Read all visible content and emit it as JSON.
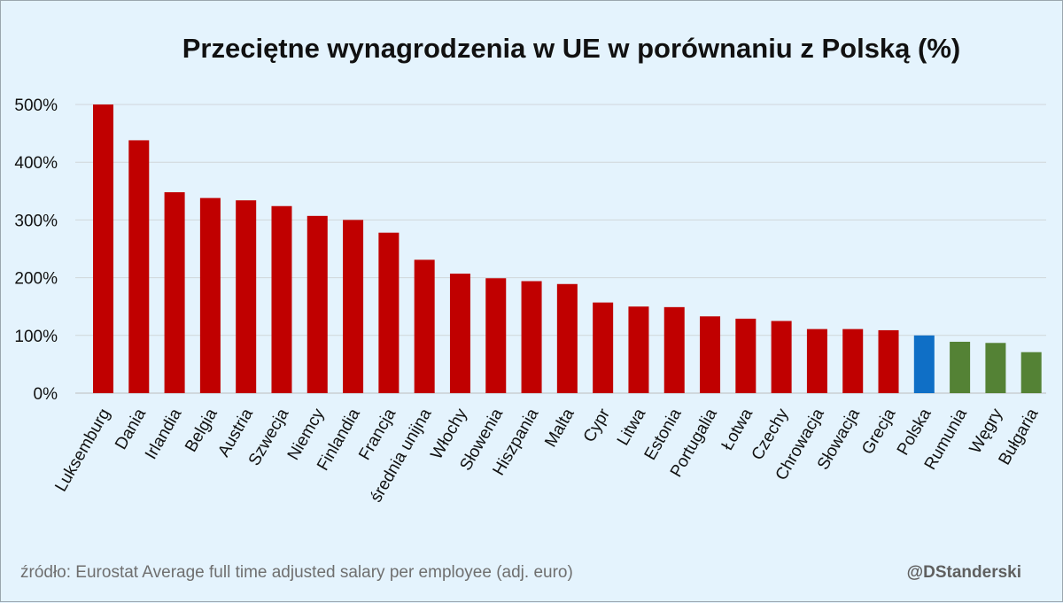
{
  "chart_data": {
    "type": "bar",
    "title": "Przeciętne wynagrodzenia w UE w porównaniu z Polską (%)",
    "categories": [
      "Luksemburg",
      "Dania",
      "Irlandia",
      "Belgia",
      "Austria",
      "Szwecja",
      "Niemcy",
      "Finlandia",
      "Francja",
      "średnia unijna",
      "Włochy",
      "Słowenia",
      "Hiszpania",
      "Malta",
      "Cypr",
      "Litwa",
      "Estonia",
      "Portugalia",
      "Łotwa",
      "Czechy",
      "Chrowacja",
      "Słowacja",
      "Grecja",
      "Polska",
      "Rumunia",
      "Węgry",
      "Bułgaria"
    ],
    "values": [
      500,
      438,
      348,
      338,
      334,
      324,
      307,
      300,
      278,
      231,
      207,
      199,
      194,
      189,
      157,
      150,
      149,
      133,
      129,
      125,
      111,
      111,
      109,
      100,
      89,
      87,
      71
    ],
    "bar_colors": [
      "#c00000",
      "#c00000",
      "#c00000",
      "#c00000",
      "#c00000",
      "#c00000",
      "#c00000",
      "#c00000",
      "#c00000",
      "#c00000",
      "#c00000",
      "#c00000",
      "#c00000",
      "#c00000",
      "#c00000",
      "#c00000",
      "#c00000",
      "#c00000",
      "#c00000",
      "#c00000",
      "#c00000",
      "#c00000",
      "#c00000",
      "#0f6fc6",
      "#548235",
      "#548235",
      "#548235"
    ],
    "yticks": [
      "0%",
      "100%",
      "200%",
      "300%",
      "400%",
      "500%"
    ],
    "ylim": [
      0,
      500
    ],
    "grid": true,
    "legend": "none"
  },
  "footer": {
    "source": "źródło: Eurostat Average full time adjusted salary per employee (adj. euro)",
    "author": "@DStanderski"
  }
}
